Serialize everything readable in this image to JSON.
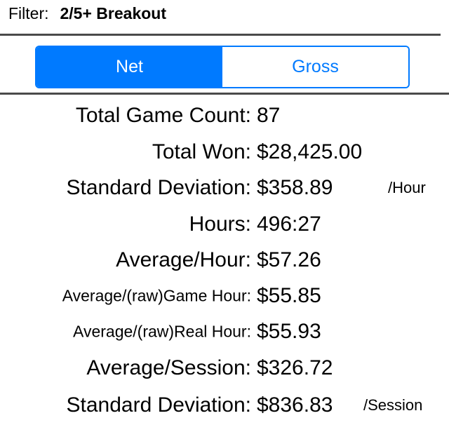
{
  "filter": {
    "label": "Filter:",
    "value": "2/5+ Breakout"
  },
  "segments": {
    "net": "Net",
    "gross": "Gross",
    "selected": "Net"
  },
  "stats": [
    {
      "label": "Total Game Count:",
      "value": "87"
    },
    {
      "label": "Total Won:",
      "value": "$28,425.00"
    },
    {
      "label": "Standard Deviation:",
      "value": "$358.89",
      "unit": "/Hour"
    },
    {
      "label": "Hours:",
      "value": "496:27"
    },
    {
      "label": "Average/Hour:",
      "value": "$57.26"
    },
    {
      "label": "Average/(raw)Game Hour:",
      "value": "$55.85"
    },
    {
      "label": "Average/(raw)Real Hour:",
      "value": "$55.93"
    },
    {
      "label": "Average/Session:",
      "value": "$326.72"
    },
    {
      "label": "Standard Deviation:",
      "value": "$836.83",
      "unit": "/Session"
    }
  ],
  "colors": {
    "accent": "#007aff",
    "divider": "#4a4a4a"
  }
}
